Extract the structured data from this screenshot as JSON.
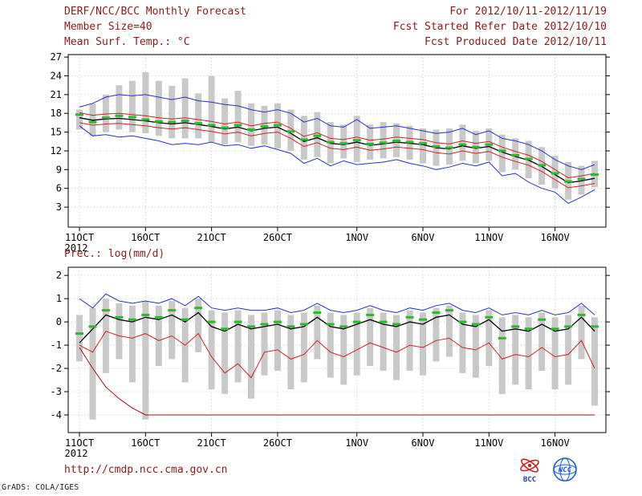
{
  "header": {
    "title": "DERF/NCC/BCC Monthly Forecast",
    "for_range": "For 2012/10/11-2012/11/19",
    "member_size": "Member Size=40",
    "refer_date": "Fcst Started Refer Date 2012/10/10",
    "produced_date": "Fcst Produced Date 2012/10/11"
  },
  "footer": {
    "url": "http://cmdp.ncc.cma.gov.cn",
    "credit": "GrADS: COLA/IGES",
    "bcc_label": "BCC",
    "ncc_label": "NCC"
  },
  "colors": {
    "header_text": "#8b1a1a",
    "axis_text": "#000000",
    "grid": "#bbbbbb",
    "bar": "#c9c9c9",
    "blue": "#2233cc",
    "red": "#cc2222",
    "dark_red": "#a01010",
    "black": "#000000",
    "green": "#2db82d"
  },
  "chart_data": [
    {
      "type": "line",
      "title": "Mean Surf. Temp.: °C",
      "ylim": [
        -0.2,
        27.4
      ],
      "yticks": [
        3,
        6,
        9,
        12,
        15,
        18,
        21,
        24,
        27
      ],
      "x_sublabel": "2012",
      "n": 40,
      "xticks": [
        {
          "i": 0,
          "label": "11OCT"
        },
        {
          "i": 5,
          "label": "16OCT"
        },
        {
          "i": 10,
          "label": "21OCT"
        },
        {
          "i": 15,
          "label": "26OCT"
        },
        {
          "i": 21,
          "label": "1NOV"
        },
        {
          "i": 26,
          "label": "6NOV"
        },
        {
          "i": 31,
          "label": "11NOV"
        },
        {
          "i": 36,
          "label": "16NOV"
        }
      ],
      "bars": {
        "name": "ensemble-spread",
        "top": [
          18.6,
          19.6,
          21.0,
          22.5,
          23.2,
          24.6,
          23.2,
          22.4,
          23.6,
          21.2,
          24.0,
          20.4,
          21.6,
          19.6,
          19.2,
          19.6,
          18.6,
          17.6,
          18.2,
          16.6,
          16.2,
          17.6,
          16.2,
          16.6,
          16.4,
          16.0,
          15.6,
          15.4,
          15.6,
          16.2,
          15.2,
          15.6,
          14.6,
          14.0,
          13.6,
          12.6,
          11.2,
          10.2,
          9.6,
          10.4
        ],
        "bottom": [
          15.4,
          14.4,
          15.0,
          15.4,
          15.0,
          14.8,
          14.4,
          14.0,
          14.0,
          14.0,
          13.4,
          13.0,
          13.4,
          12.8,
          13.0,
          12.4,
          12.0,
          10.6,
          11.0,
          10.0,
          10.8,
          10.2,
          10.6,
          10.8,
          11.0,
          10.6,
          10.0,
          9.6,
          9.8,
          10.4,
          10.0,
          10.4,
          8.6,
          9.0,
          7.6,
          6.6,
          6.0,
          4.2,
          5.0,
          6.2
        ]
      },
      "lines": [
        {
          "name": "upper-bound",
          "color": "#2233cc",
          "width": 1,
          "values": [
            19.0,
            19.6,
            20.6,
            21.0,
            20.8,
            21.0,
            20.6,
            20.2,
            20.6,
            20.0,
            19.8,
            19.4,
            19.2,
            18.6,
            18.2,
            18.6,
            18.0,
            16.6,
            17.2,
            16.0,
            15.8,
            17.0,
            15.6,
            15.8,
            16.0,
            15.6,
            15.2,
            14.8,
            15.0,
            15.6,
            14.6,
            15.2,
            14.0,
            13.6,
            13.0,
            12.0,
            10.6,
            9.6,
            9.0,
            9.8
          ]
        },
        {
          "name": "plus-std",
          "color": "#cc2222",
          "width": 1,
          "values": [
            18.1,
            17.7,
            17.9,
            18.0,
            17.8,
            17.6,
            17.3,
            17.1,
            17.3,
            17.0,
            16.7,
            16.3,
            16.6,
            16.0,
            16.4,
            16.6,
            15.6,
            14.3,
            14.9,
            14.0,
            13.8,
            14.2,
            13.7,
            13.9,
            14.2,
            14.0,
            13.8,
            13.3,
            13.1,
            13.6,
            13.2,
            13.5,
            12.6,
            11.9,
            11.3,
            10.3,
            9.0,
            7.7,
            8.0,
            8.4
          ]
        },
        {
          "name": "ensemble-mean",
          "color": "#000000",
          "width": 1.3,
          "values": [
            17.3,
            16.9,
            17.1,
            17.2,
            17.0,
            16.8,
            16.5,
            16.3,
            16.5,
            16.2,
            15.9,
            15.5,
            15.8,
            15.2,
            15.6,
            15.8,
            14.8,
            13.5,
            14.1,
            13.2,
            13.0,
            13.4,
            12.9,
            13.1,
            13.4,
            13.2,
            13.0,
            12.5,
            12.3,
            12.8,
            12.4,
            12.7,
            11.8,
            11.1,
            10.5,
            9.5,
            8.2,
            6.9,
            7.2,
            7.6
          ]
        },
        {
          "name": "minus-std",
          "color": "#cc2222",
          "width": 1,
          "values": [
            16.5,
            16.1,
            16.3,
            16.4,
            16.2,
            16.0,
            15.7,
            15.5,
            15.7,
            15.4,
            15.1,
            14.7,
            15.0,
            14.4,
            14.8,
            15.0,
            14.0,
            12.7,
            13.3,
            12.4,
            12.2,
            12.6,
            12.1,
            12.3,
            12.6,
            12.4,
            12.2,
            11.7,
            11.5,
            12.0,
            11.6,
            11.9,
            11.0,
            10.3,
            9.7,
            8.7,
            7.4,
            6.1,
            6.4,
            6.8
          ]
        },
        {
          "name": "lower-bound",
          "color": "#2233cc",
          "width": 1,
          "values": [
            16.0,
            14.4,
            14.6,
            14.2,
            14.4,
            14.0,
            13.6,
            13.0,
            13.2,
            13.0,
            13.4,
            12.8,
            13.0,
            12.4,
            12.8,
            12.2,
            11.6,
            10.0,
            10.8,
            9.6,
            10.4,
            9.8,
            10.0,
            10.2,
            10.6,
            10.0,
            9.6,
            9.0,
            9.4,
            10.0,
            9.6,
            10.2,
            8.0,
            8.4,
            7.0,
            6.0,
            5.4,
            3.6,
            4.6,
            5.8
          ]
        }
      ],
      "dashes": {
        "name": "median",
        "color": "#2db82d",
        "values": [
          17.8,
          16.6,
          17.3,
          17.6,
          17.4,
          17.0,
          16.7,
          16.6,
          16.8,
          16.4,
          16.1,
          15.7,
          16.1,
          15.4,
          15.9,
          16.1,
          15.1,
          13.8,
          14.4,
          13.4,
          13.2,
          13.7,
          13.1,
          13.3,
          13.6,
          13.4,
          13.2,
          12.7,
          12.5,
          13.0,
          12.6,
          13.0,
          12.0,
          11.3,
          10.7,
          9.7,
          8.4,
          7.1,
          7.5,
          8.2
        ]
      }
    },
    {
      "type": "line",
      "title": "Prec.: log(mm/d)",
      "ylim": [
        -4.76,
        2.35
      ],
      "yticks": [
        2,
        1,
        0,
        -1,
        -2,
        -3,
        -4
      ],
      "x_sublabel": "2012",
      "n": 40,
      "xticks": [
        {
          "i": 0,
          "label": "11OCT"
        },
        {
          "i": 5,
          "label": "16OCT"
        },
        {
          "i": 10,
          "label": "21OCT"
        },
        {
          "i": 15,
          "label": "26OCT"
        },
        {
          "i": 21,
          "label": "1NOV"
        },
        {
          "i": 26,
          "label": "6NOV"
        },
        {
          "i": 31,
          "label": "11NOV"
        },
        {
          "i": 36,
          "label": "16NOV"
        }
      ],
      "bars": {
        "name": "ensemble-spread",
        "top": [
          0.3,
          0.6,
          1.0,
          0.8,
          0.7,
          0.9,
          0.7,
          0.9,
          0.6,
          1.0,
          0.5,
          0.4,
          0.5,
          0.3,
          0.4,
          0.5,
          0.3,
          0.4,
          0.7,
          0.4,
          0.3,
          0.4,
          0.6,
          0.4,
          0.3,
          0.5,
          0.4,
          0.6,
          0.7,
          0.4,
          0.3,
          0.5,
          0.2,
          0.3,
          0.2,
          0.4,
          0.2,
          0.3,
          0.7,
          0.2
        ],
        "bottom": [
          -1.7,
          -4.2,
          -2.2,
          -1.6,
          -2.6,
          -4.2,
          -1.9,
          -1.6,
          -2.6,
          -1.3,
          -2.9,
          -3.1,
          -2.6,
          -3.3,
          -2.3,
          -2.1,
          -2.9,
          -2.6,
          -1.6,
          -2.4,
          -2.7,
          -2.3,
          -1.9,
          -2.1,
          -2.5,
          -2.1,
          -2.3,
          -1.7,
          -1.5,
          -2.2,
          -2.4,
          -1.9,
          -3.1,
          -2.7,
          -2.9,
          -2.1,
          -2.9,
          -2.7,
          -1.6,
          -3.6
        ]
      },
      "lines": [
        {
          "name": "upper-bound",
          "color": "#2233cc",
          "width": 1,
          "values": [
            1.0,
            0.6,
            1.2,
            0.9,
            0.8,
            0.9,
            0.8,
            1.0,
            0.7,
            1.1,
            0.6,
            0.5,
            0.6,
            0.5,
            0.5,
            0.6,
            0.4,
            0.5,
            0.8,
            0.5,
            0.4,
            0.5,
            0.7,
            0.5,
            0.4,
            0.6,
            0.5,
            0.7,
            0.8,
            0.5,
            0.4,
            0.6,
            0.3,
            0.4,
            0.3,
            0.5,
            0.3,
            0.4,
            0.8,
            0.3
          ]
        },
        {
          "name": "ensemble-mean",
          "color": "#000000",
          "width": 1.3,
          "values": [
            -0.9,
            -0.3,
            0.3,
            0.1,
            0.0,
            0.2,
            0.1,
            0.3,
            0.0,
            0.4,
            -0.2,
            -0.4,
            -0.1,
            -0.3,
            -0.2,
            -0.1,
            -0.3,
            -0.2,
            0.2,
            -0.2,
            -0.3,
            -0.1,
            0.1,
            -0.1,
            -0.2,
            0.0,
            -0.1,
            0.2,
            0.3,
            -0.1,
            -0.2,
            0.1,
            -0.4,
            -0.3,
            -0.4,
            -0.1,
            -0.4,
            -0.3,
            0.2,
            -0.4
          ]
        },
        {
          "name": "minus-std",
          "color": "#cc2222",
          "width": 1,
          "values": [
            -1.0,
            -1.3,
            -0.4,
            -0.6,
            -0.7,
            -0.5,
            -0.8,
            -0.6,
            -1.0,
            -0.5,
            -1.5,
            -2.2,
            -1.8,
            -2.4,
            -1.3,
            -1.2,
            -1.6,
            -1.4,
            -0.8,
            -1.3,
            -1.5,
            -1.2,
            -0.9,
            -1.1,
            -1.3,
            -1.0,
            -1.1,
            -0.8,
            -0.7,
            -1.1,
            -1.2,
            -0.9,
            -1.6,
            -1.4,
            -1.5,
            -1.1,
            -1.5,
            -1.4,
            -0.8,
            -2.0
          ]
        },
        {
          "name": "lower-bound",
          "color": "#a01010",
          "width": 1,
          "values": [
            -1.1,
            -2.0,
            -2.8,
            -3.3,
            -3.7,
            -4.0,
            -4.0,
            -4.0,
            -4.0,
            -4.0,
            -4.0,
            -4.0,
            -4.0,
            -4.0,
            -4.0,
            -4.0,
            -4.0,
            -4.0,
            -4.0,
            -4.0,
            -4.0,
            -4.0,
            -4.0,
            -4.0,
            -4.0,
            -4.0,
            -4.0,
            -4.0,
            -4.0,
            -4.0,
            -4.0,
            -4.0,
            -4.0,
            -4.0,
            -4.0,
            -4.0,
            -4.0,
            -4.0,
            -4.0,
            -4.0
          ]
        }
      ],
      "dashes": {
        "name": "median",
        "color": "#2db82d",
        "values": [
          -0.5,
          -0.2,
          0.5,
          0.2,
          0.1,
          0.3,
          0.2,
          0.5,
          0.1,
          0.6,
          0.0,
          -0.3,
          0.0,
          -0.2,
          -0.1,
          0.0,
          -0.2,
          -0.1,
          0.4,
          -0.1,
          -0.2,
          0.0,
          0.3,
          0.0,
          -0.1,
          0.2,
          0.1,
          0.4,
          0.5,
          0.0,
          -0.1,
          0.2,
          -0.7,
          -0.2,
          -0.3,
          0.1,
          -0.3,
          -0.2,
          0.3,
          -0.2
        ]
      }
    }
  ]
}
